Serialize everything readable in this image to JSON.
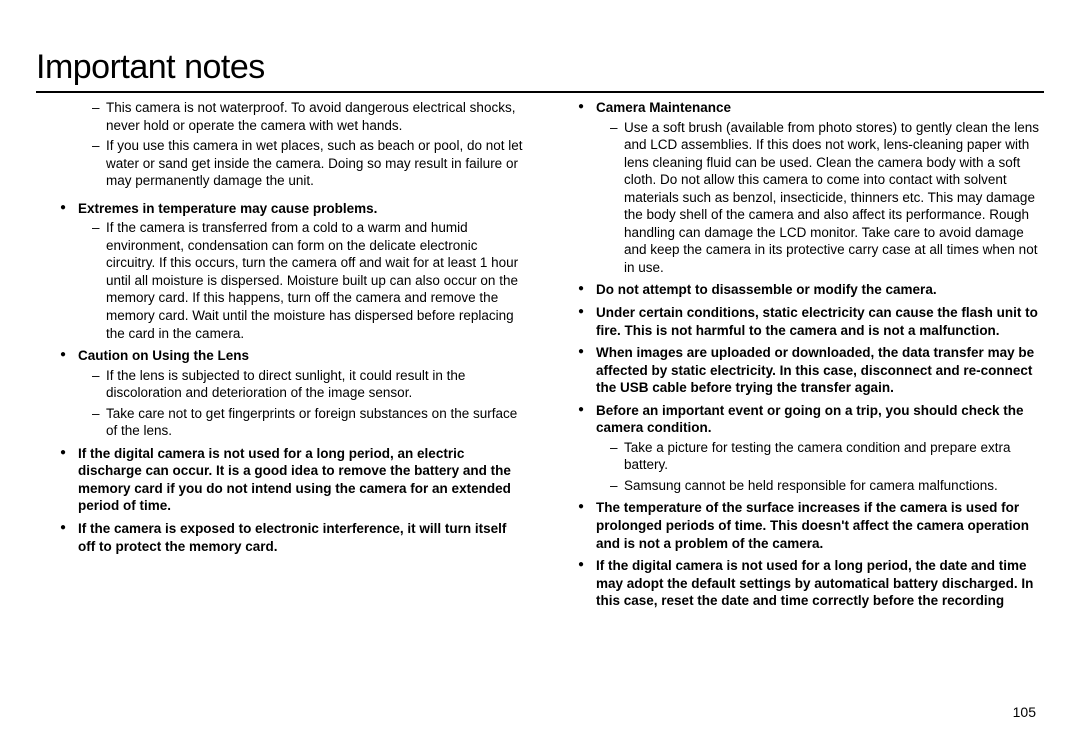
{
  "title": "Important notes",
  "page_number": "105",
  "colors": {
    "text": "#000000",
    "background": "#ffffff",
    "rule": "#000000"
  },
  "typography": {
    "title_fontsize_pt": 26,
    "body_fontsize_pt": 10,
    "font_family": "Arial"
  },
  "left": {
    "lead": [
      "This camera is not waterproof. To avoid dangerous electrical shocks, never hold or operate the camera with wet hands.",
      "If you use this camera in wet places, such as beach or pool, do not let water or sand get inside the camera. Doing so may result in failure or may permanently damage the unit."
    ],
    "b1": {
      "heading": "Extremes in temperature may cause problems.",
      "dash1": "If the camera is transferred from a cold to a warm and humid environment, condensation can form on the delicate electronic circuitry. If this occurs, turn the camera off and wait for at least 1 hour until all moisture is dispersed. Moisture built up can also occur on the memory card. If this happens, turn off the camera and remove the memory card. Wait until the moisture has dispersed before replacing the card in the camera."
    },
    "b2": {
      "heading": "Caution on Using the Lens",
      "dash1": "If the lens is subjected to direct sunlight, it could result in the discoloration and deterioration of the image sensor.",
      "dash2": "Take care not to get fingerprints or foreign substances on the surface of the lens."
    },
    "b3": "If the digital camera is not used for a long period, an electric discharge can occur. It is a good idea to remove the battery and the memory card if you do not intend using the camera for an extended period of time.",
    "b4": "If the camera is exposed to electronic interference, it will turn itself off to protect the memory card."
  },
  "right": {
    "b1": {
      "heading": "Camera Maintenance",
      "dash1": "Use a soft brush (available from photo stores) to gently clean the lens and LCD assemblies. If this does not work, lens-cleaning paper with lens cleaning fluid can be used. Clean the camera body with a soft cloth. Do not allow this camera to come into contact with solvent materials such as benzol, insecticide, thinners etc. This may damage the body shell of the camera and also affect its performance. Rough handling can damage the LCD monitor. Take care to avoid damage and keep the camera in its protective carry case at all times when not in use."
    },
    "b2": "Do not attempt to disassemble or modify the camera.",
    "b3": "Under certain conditions, static electricity can cause the flash unit to fire. This is not harmful to the camera and is not a malfunction.",
    "b4": "When images are uploaded or downloaded, the data transfer may be affected by static electricity. In this case, disconnect and re-connect the USB cable before trying the transfer again.",
    "b5": {
      "heading": "Before an important event or going on a trip, you should check the camera condition.",
      "dash1": "Take a picture for testing the camera condition and prepare extra battery.",
      "dash2": "Samsung cannot be held responsible for camera malfunctions."
    },
    "b6": "The temperature of the surface increases if the camera is used for prolonged periods of time. This doesn't affect the camera operation and is not a problem of the camera.",
    "b7": "If the digital camera is not used for a long period, the date and time may adopt the default settings by automatical battery discharged. In this case, reset the date and time correctly before the recording"
  }
}
